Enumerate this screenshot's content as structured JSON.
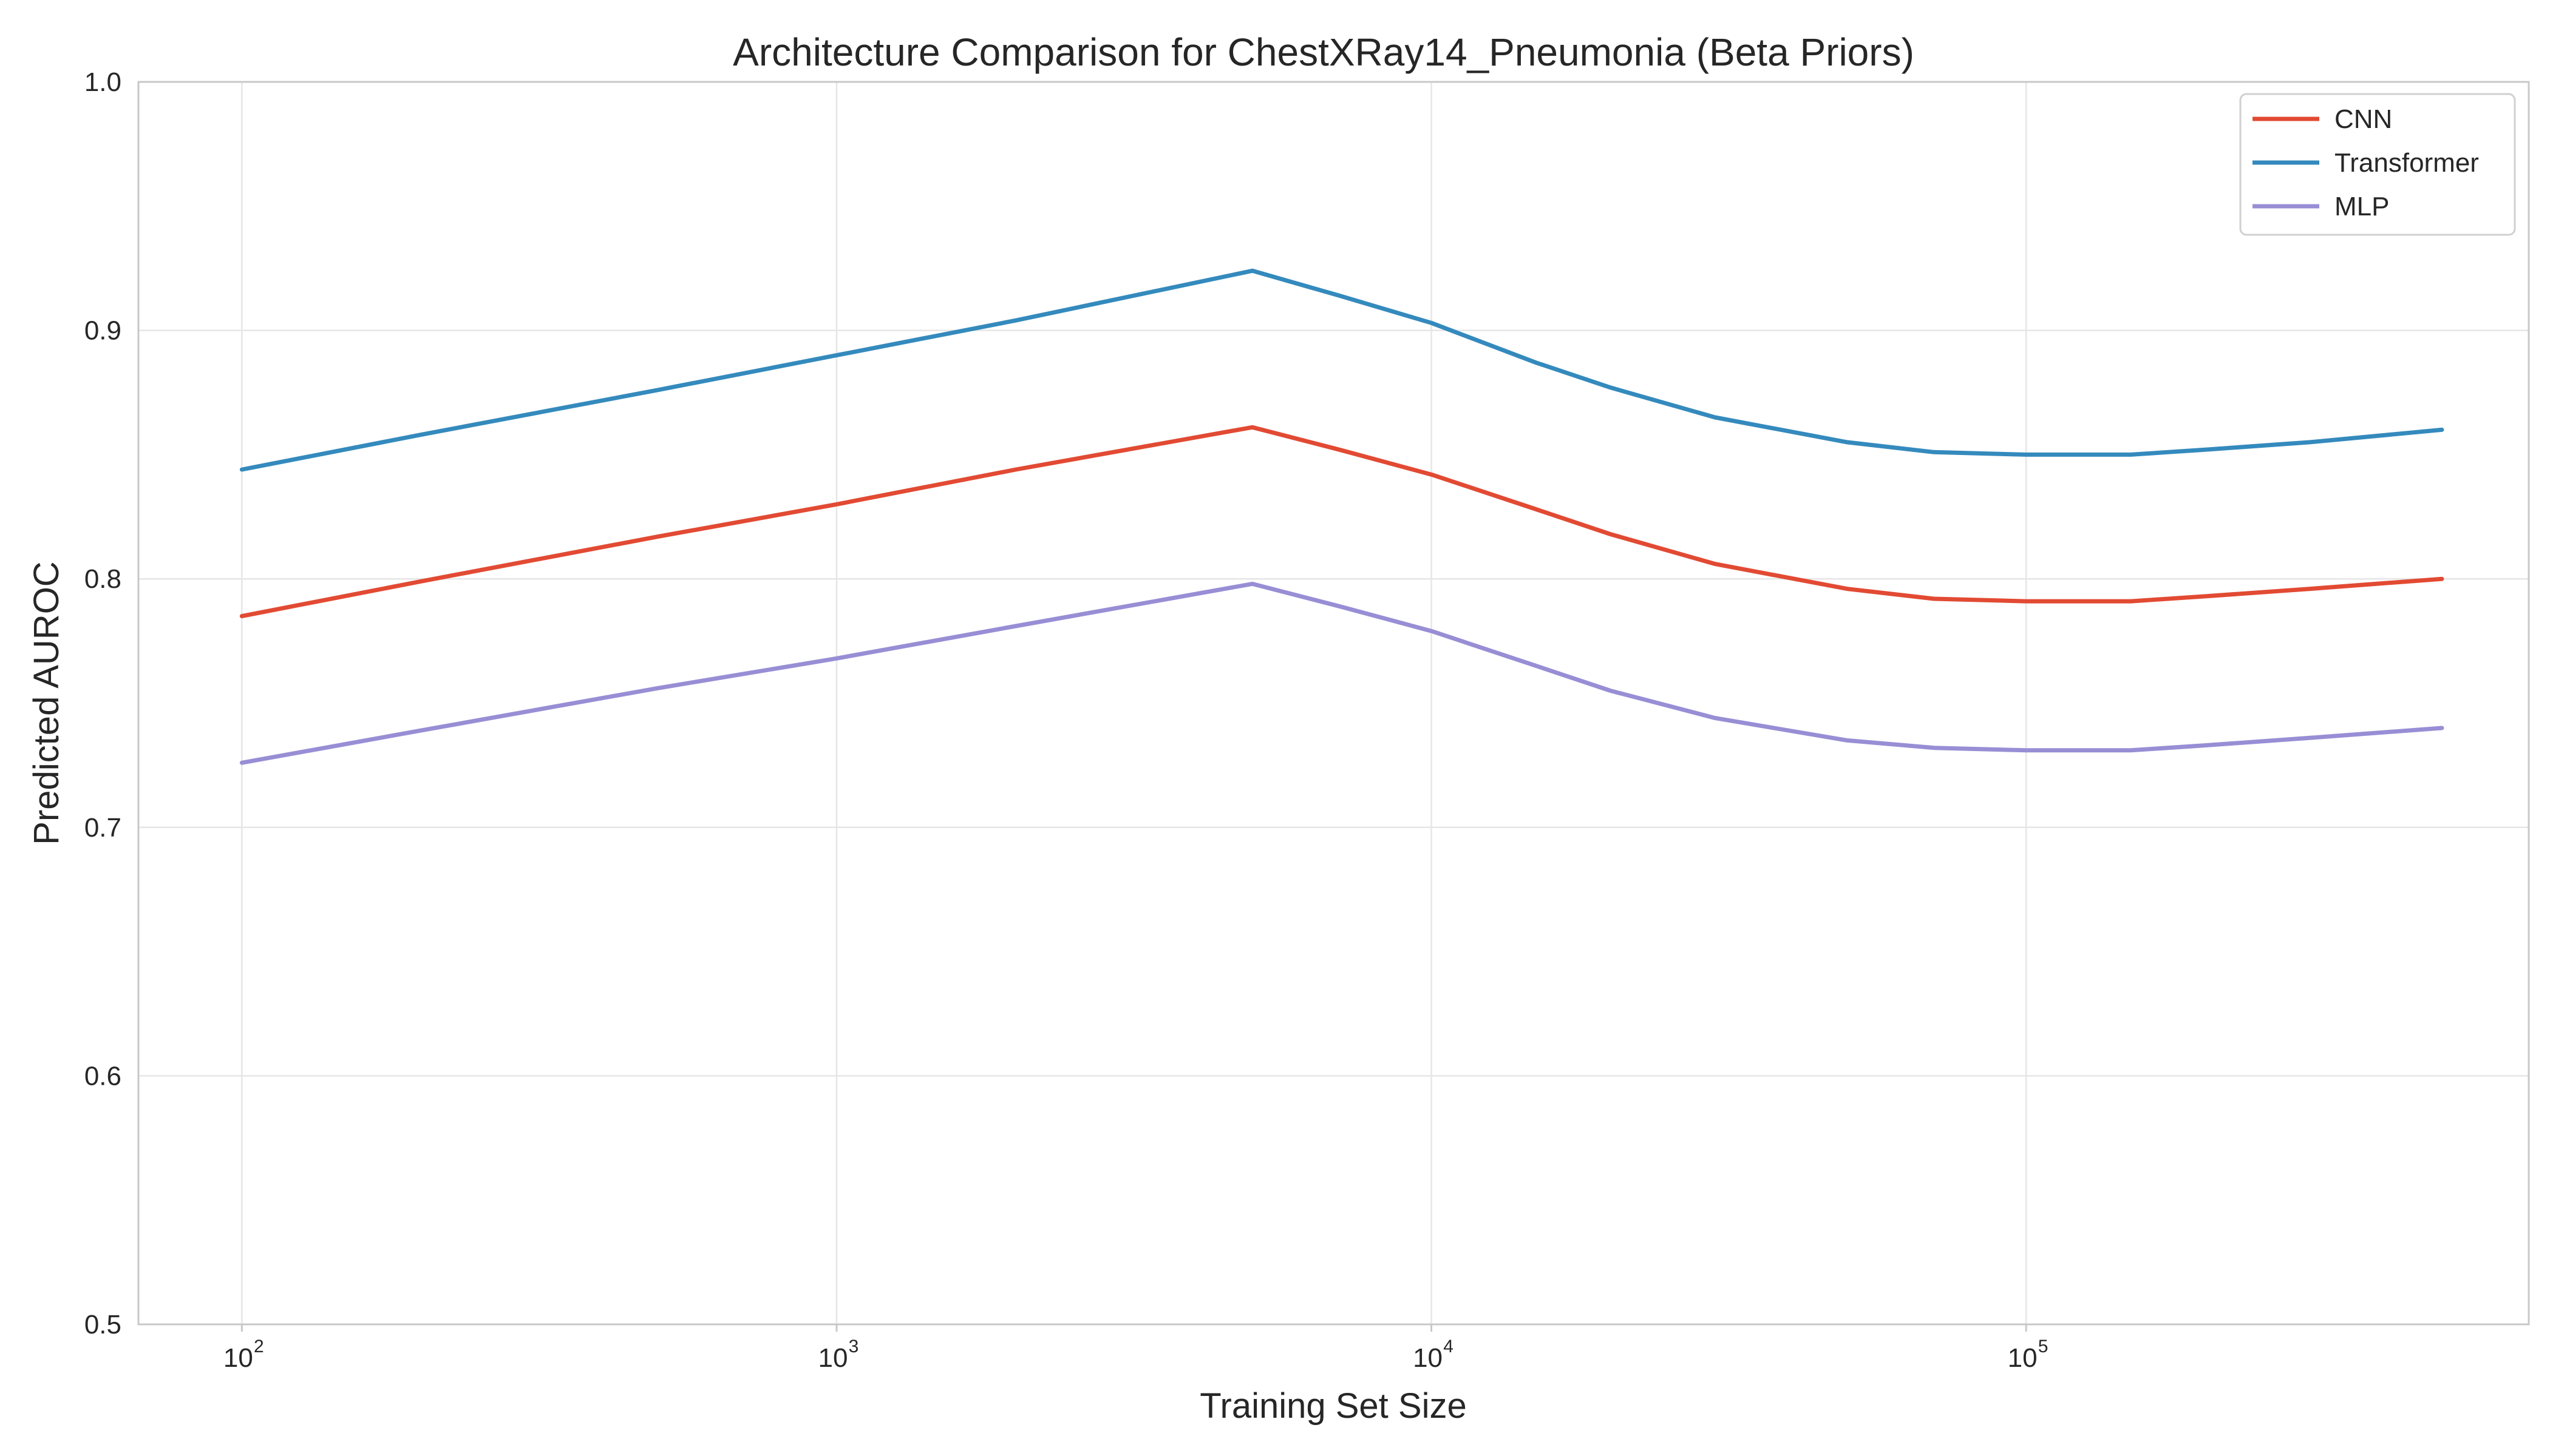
{
  "chart_data": {
    "type": "line",
    "title": "Architecture Comparison for ChestXRay14_Pneumonia (Beta Priors)",
    "xlabel": "Training Set Size",
    "ylabel": "Predicted AUROC",
    "xscale": "log",
    "xlim": [
      67,
      700000
    ],
    "ylim": [
      0.5,
      1.0
    ],
    "xticks": [
      {
        "value": 100,
        "base": "10",
        "exp": "2"
      },
      {
        "value": 1000,
        "base": "10",
        "exp": "3"
      },
      {
        "value": 10000,
        "base": "10",
        "exp": "4"
      },
      {
        "value": 100000,
        "base": "10",
        "exp": "5"
      }
    ],
    "yticks": [
      {
        "value": 0.5,
        "label": "0.5"
      },
      {
        "value": 0.6,
        "label": "0.6"
      },
      {
        "value": 0.7,
        "label": "0.7"
      },
      {
        "value": 0.8,
        "label": "0.8"
      },
      {
        "value": 0.9,
        "label": "0.9"
      },
      {
        "value": 1.0,
        "label": "1.0"
      }
    ],
    "grid": true,
    "legend_position": "top-right",
    "x": [
      100,
      200,
      500,
      1000,
      2000,
      5000,
      7000,
      10000,
      15000,
      20000,
      30000,
      50000,
      70000,
      100000,
      120000,
      150000,
      200000,
      300000,
      500000
    ],
    "series": [
      {
        "name": "CNN",
        "color": "#e24a33",
        "values": [
          0.785,
          0.799,
          0.817,
          0.83,
          0.844,
          0.861,
          0.852,
          0.842,
          0.828,
          0.818,
          0.806,
          0.796,
          0.792,
          0.791,
          0.791,
          0.791,
          0.793,
          0.796,
          0.8
        ]
      },
      {
        "name": "Transformer",
        "color": "#348abd",
        "values": [
          0.844,
          0.858,
          0.876,
          0.89,
          0.904,
          0.924,
          0.914,
          0.903,
          0.887,
          0.877,
          0.865,
          0.855,
          0.851,
          0.85,
          0.85,
          0.85,
          0.852,
          0.855,
          0.86
        ]
      },
      {
        "name": "MLP",
        "color": "#988ed5",
        "values": [
          0.726,
          0.739,
          0.756,
          0.768,
          0.781,
          0.798,
          0.789,
          0.779,
          0.765,
          0.755,
          0.744,
          0.735,
          0.732,
          0.731,
          0.731,
          0.731,
          0.733,
          0.736,
          0.74
        ]
      }
    ]
  }
}
